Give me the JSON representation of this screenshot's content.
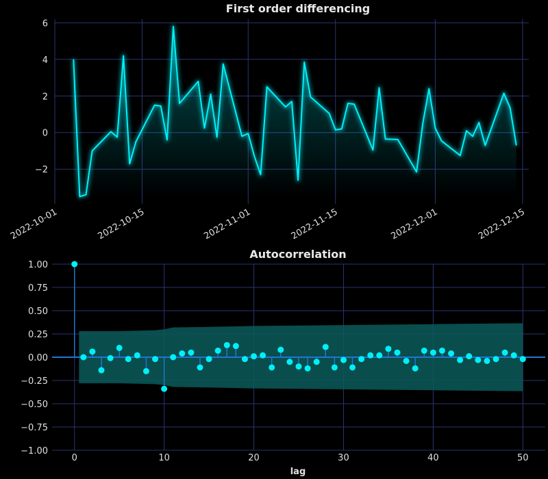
{
  "chart_data": [
    {
      "type": "line",
      "title": "First order differencing",
      "xlabel": "",
      "ylabel": "",
      "xlim": [
        "2022-10-01",
        "2022-12-16"
      ],
      "ylim": [
        -3.9,
        6.2
      ],
      "grid": true,
      "line_color": "#00f0f8",
      "fill": "gradient-to-zero-below",
      "x_ticks": [
        "2022-10-01",
        "2022-10-15",
        "2022-11-01",
        "2022-11-15",
        "2022-12-01",
        "2022-12-15"
      ],
      "y_ticks": [
        -2,
        0,
        2,
        4,
        6
      ],
      "x": [
        "2022-10-04",
        "2022-10-05",
        "2022-10-06",
        "2022-10-07",
        "2022-10-10",
        "2022-10-11",
        "2022-10-12",
        "2022-10-13",
        "2022-10-14",
        "2022-10-17",
        "2022-10-18",
        "2022-10-19",
        "2022-10-20",
        "2022-10-21",
        "2022-10-24",
        "2022-10-25",
        "2022-10-26",
        "2022-10-27",
        "2022-10-28",
        "2022-10-31",
        "2022-11-01",
        "2022-11-02",
        "2022-11-03",
        "2022-11-04",
        "2022-11-07",
        "2022-11-08",
        "2022-11-09",
        "2022-11-10",
        "2022-11-11",
        "2022-11-14",
        "2022-11-15",
        "2022-11-16",
        "2022-11-17",
        "2022-11-18",
        "2022-11-21",
        "2022-11-22",
        "2022-11-23",
        "2022-11-25",
        "2022-11-28",
        "2022-11-29",
        "2022-11-30",
        "2022-12-01",
        "2022-12-02",
        "2022-12-05",
        "2022-12-06",
        "2022-12-07",
        "2022-12-08",
        "2022-12-09",
        "2022-12-12",
        "2022-12-13",
        "2022-12-14"
      ],
      "values": [
        4.0,
        -3.5,
        -3.4,
        -1.0,
        0.05,
        -0.25,
        4.2,
        -1.7,
        -0.5,
        1.5,
        1.45,
        -0.4,
        5.8,
        1.6,
        2.8,
        0.25,
        2.1,
        -0.25,
        3.75,
        -0.2,
        -0.05,
        -1.3,
        -2.3,
        2.5,
        1.4,
        1.7,
        -2.6,
        3.85,
        1.95,
        1.05,
        0.15,
        0.2,
        1.6,
        1.55,
        -0.95,
        2.45,
        -0.35,
        -0.38,
        -2.15,
        0.5,
        2.4,
        0.25,
        -0.45,
        -1.25,
        0.1,
        -0.2,
        0.55,
        -0.7,
        2.15,
        1.35,
        -0.7
      ]
    },
    {
      "type": "stem",
      "title": "Autocorrelation",
      "xlabel": "lag",
      "ylabel": "",
      "xlim": [
        -2.5,
        52.5
      ],
      "ylim": [
        -1.0,
        1.0
      ],
      "grid": true,
      "marker_color": "#00f0f8",
      "stem_color": "#1f77d4",
      "band_color": "#0b5a5a",
      "x_ticks": [
        0,
        10,
        20,
        30,
        40,
        50
      ],
      "y_ticks": [
        -1.0,
        -0.75,
        -0.5,
        -0.25,
        0.0,
        0.25,
        0.5,
        0.75,
        1.0
      ],
      "lags": [
        0,
        1,
        2,
        3,
        4,
        5,
        6,
        7,
        8,
        9,
        10,
        11,
        12,
        13,
        14,
        15,
        16,
        17,
        18,
        19,
        20,
        21,
        22,
        23,
        24,
        25,
        26,
        27,
        28,
        29,
        30,
        31,
        32,
        33,
        34,
        35,
        36,
        37,
        38,
        39,
        40,
        41,
        42,
        43,
        44,
        45,
        46,
        47,
        48,
        49,
        50
      ],
      "values": [
        1.0,
        0.0,
        0.06,
        -0.14,
        -0.01,
        0.1,
        -0.02,
        0.02,
        -0.15,
        -0.02,
        -0.34,
        0.0,
        0.04,
        0.05,
        -0.11,
        -0.02,
        0.07,
        0.13,
        0.12,
        -0.02,
        0.01,
        0.02,
        -0.11,
        0.08,
        -0.05,
        -0.1,
        -0.12,
        -0.05,
        0.11,
        -0.11,
        -0.03,
        -0.11,
        -0.02,
        0.02,
        0.02,
        0.09,
        0.05,
        -0.04,
        -0.12,
        0.07,
        0.05,
        0.07,
        0.04,
        -0.03,
        0.01,
        -0.03,
        -0.04,
        -0.02,
        0.05,
        0.02,
        -0.02
      ],
      "confidence_band": {
        "lags": [
          0.5,
          1,
          5,
          9,
          10,
          11,
          15,
          20,
          25,
          30,
          35,
          40,
          45,
          50
        ],
        "upper": [
          0.28,
          0.28,
          0.28,
          0.29,
          0.3,
          0.32,
          0.325,
          0.335,
          0.34,
          0.345,
          0.35,
          0.355,
          0.36,
          0.365
        ],
        "lower": [
          -0.28,
          -0.28,
          -0.28,
          -0.29,
          -0.3,
          -0.32,
          -0.325,
          -0.335,
          -0.34,
          -0.345,
          -0.35,
          -0.355,
          -0.36,
          -0.365
        ]
      }
    }
  ]
}
